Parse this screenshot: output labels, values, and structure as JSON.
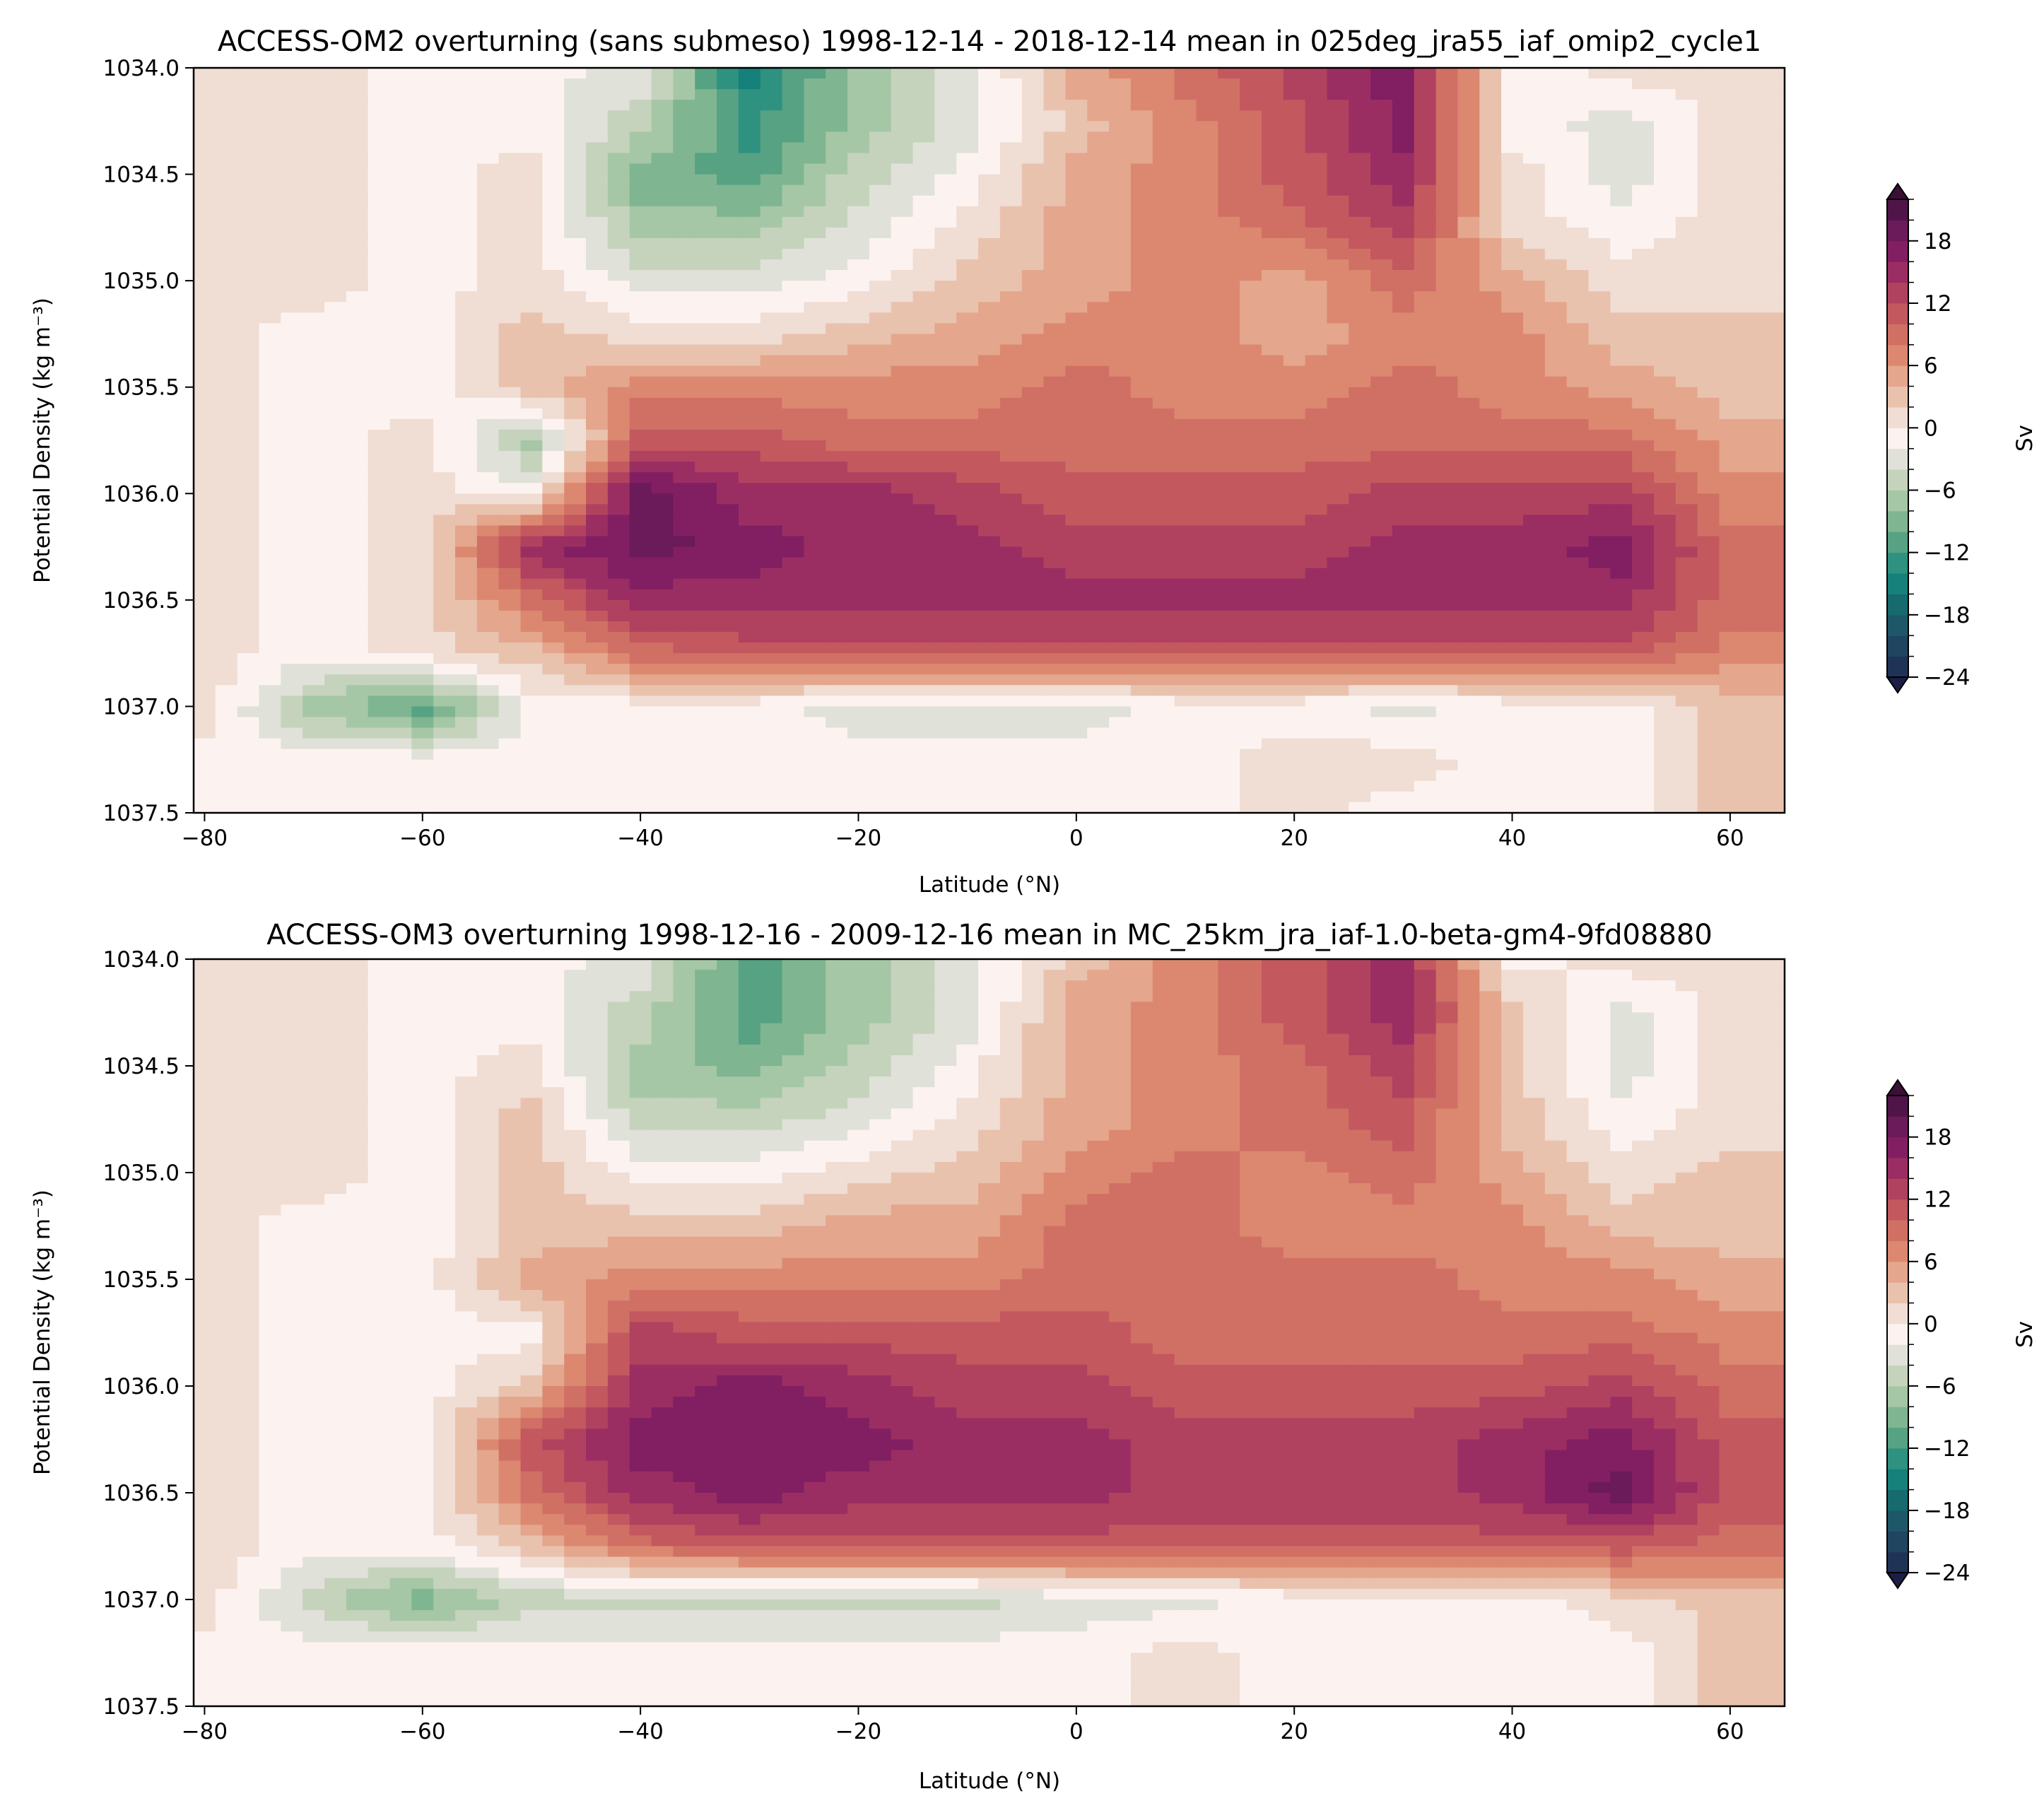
{
  "chart_data": [
    {
      "type": "heatmap",
      "subtype": "filled-contour",
      "title": "ACCESS-OM2 overturning (sans submeso) 1998-12-14 - 2018-12-14 mean in 025deg_jra55_iaf_omip2_cycle1",
      "xlabel": "Latitude ($^\\circ$N)",
      "xlabel_display": "Latitude (°N)",
      "ylabel": "Potential Density (kg m⁻³)",
      "xlim": [
        -81,
        65
      ],
      "ylim": [
        1037.5,
        1034.0
      ],
      "xticks": [
        "−80",
        "−60",
        "−40",
        "−20",
        "0",
        "20",
        "40",
        "60"
      ],
      "xtick_values": [
        -80,
        -60,
        -40,
        -20,
        0,
        20,
        40,
        60
      ],
      "yticks": [
        "1034.0",
        "1034.5",
        "1035.0",
        "1035.5",
        "1036.0",
        "1036.5",
        "1037.0",
        "1037.5"
      ],
      "colorbar": {
        "label": "Sv",
        "ticks": [
          "18",
          "12",
          "6",
          "0",
          "−6",
          "−12",
          "−18",
          "−24"
        ],
        "tick_values": [
          18,
          12,
          6,
          0,
          -6,
          -12,
          -18,
          -24
        ],
        "levels_min": -24,
        "levels_max": 22,
        "level_step": 2,
        "extend": "both"
      },
      "grid_lat": [
        -80,
        -70,
        -60,
        -50,
        -40,
        -30,
        -20,
        -10,
        0,
        10,
        20,
        30,
        40,
        50,
        60
      ],
      "grid_density": [
        1034.0,
        1034.25,
        1034.5,
        1034.75,
        1035.0,
        1035.25,
        1035.5,
        1035.75,
        1036.0,
        1036.25,
        1036.5,
        1036.75,
        1037.0,
        1037.25,
        1037.5
      ],
      "values": [
        [
          1,
          1,
          -1,
          -1,
          -3,
          -15,
          -7,
          -3,
          5,
          9,
          13,
          17,
          -1,
          1,
          1
        ],
        [
          1,
          1,
          -1,
          -1,
          -5,
          -13,
          -7,
          -3,
          3,
          7,
          11,
          17,
          -1,
          -3,
          1
        ],
        [
          1,
          1,
          -1,
          1,
          -9,
          -11,
          -5,
          -1,
          5,
          7,
          11,
          15,
          1,
          -3,
          1
        ],
        [
          1,
          1,
          -1,
          1,
          -7,
          -7,
          -3,
          1,
          5,
          7,
          9,
          13,
          1,
          -1,
          1
        ],
        [
          1,
          1,
          -1,
          1,
          -3,
          -3,
          -1,
          3,
          5,
          7,
          5,
          9,
          5,
          1,
          1
        ],
        [
          1,
          -1,
          -1,
          3,
          1,
          1,
          3,
          5,
          7,
          7,
          5,
          7,
          7,
          3,
          3
        ],
        [
          1,
          -1,
          -1,
          3,
          7,
          7,
          7,
          7,
          9,
          7,
          7,
          9,
          7,
          5,
          3
        ],
        [
          1,
          -1,
          1,
          -7,
          11,
          11,
          9,
          9,
          9,
          9,
          9,
          9,
          9,
          9,
          5
        ],
        [
          1,
          -1,
          1,
          -1,
          19,
          15,
          15,
          13,
          11,
          11,
          11,
          13,
          13,
          13,
          7
        ],
        [
          1,
          -1,
          1,
          15,
          19,
          17,
          15,
          15,
          13,
          13,
          13,
          15,
          15,
          17,
          9
        ],
        [
          1,
          -1,
          1,
          9,
          15,
          15,
          15,
          15,
          15,
          15,
          15,
          15,
          15,
          15,
          9
        ],
        [
          1,
          -1,
          1,
          3,
          9,
          11,
          11,
          11,
          11,
          11,
          11,
          11,
          11,
          11,
          7
        ],
        [
          1,
          -7,
          -11,
          -1,
          -1,
          -1,
          -3,
          -3,
          -3,
          -1,
          -1,
          -3,
          -1,
          -1,
          3
        ],
        [
          -1,
          -1,
          -1,
          -1,
          -1,
          -1,
          -1,
          -1,
          -1,
          -1,
          1,
          1,
          -1,
          -1,
          3
        ],
        [
          -1,
          -1,
          -1,
          -1,
          -1,
          -1,
          -1,
          -1,
          -1,
          -1,
          1,
          -1,
          -1,
          -1,
          3
        ]
      ]
    },
    {
      "type": "heatmap",
      "subtype": "filled-contour",
      "title": "ACCESS-OM3 overturning 1998-12-16 - 2009-12-16 mean in MC_25km_jra_iaf-1.0-beta-gm4-9fd08880",
      "xlabel": "Latitude ($^\\circ$N)",
      "xlabel_display": "Latitude (°N)",
      "ylabel": "Potential Density (kg m⁻³)",
      "xlim": [
        -81,
        65
      ],
      "ylim": [
        1037.5,
        1034.0
      ],
      "xticks": [
        "−80",
        "−60",
        "−40",
        "−20",
        "0",
        "20",
        "40",
        "60"
      ],
      "xtick_values": [
        -80,
        -60,
        -40,
        -20,
        0,
        20,
        40,
        60
      ],
      "yticks": [
        "1034.0",
        "1034.5",
        "1035.0",
        "1035.5",
        "1036.0",
        "1036.5",
        "1037.0",
        "1037.5"
      ],
      "colorbar": {
        "label": "Sv",
        "ticks": [
          "18",
          "12",
          "6",
          "0",
          "−6",
          "−12",
          "−18",
          "−24"
        ],
        "tick_values": [
          18,
          12,
          6,
          0,
          -6,
          -12,
          -18,
          -24
        ],
        "levels_min": -24,
        "levels_max": 22,
        "level_step": 2,
        "extend": "both"
      },
      "grid_lat": [
        -80,
        -70,
        -60,
        -50,
        -40,
        -30,
        -20,
        -10,
        0,
        10,
        20,
        30,
        40,
        50,
        60
      ],
      "grid_density": [
        1034.0,
        1034.25,
        1034.5,
        1034.75,
        1035.0,
        1035.25,
        1035.5,
        1035.75,
        1036.0,
        1036.25,
        1036.5,
        1036.75,
        1037.0,
        1037.25,
        1037.5
      ],
      "values": [
        [
          1,
          1,
          -1,
          -1,
          -3,
          -11,
          -7,
          -3,
          3,
          7,
          11,
          15,
          -1,
          1,
          1
        ],
        [
          1,
          1,
          -1,
          -1,
          -5,
          -11,
          -7,
          -3,
          5,
          7,
          11,
          15,
          3,
          -3,
          1
        ],
        [
          1,
          1,
          -1,
          1,
          -7,
          -9,
          -5,
          -1,
          5,
          7,
          9,
          13,
          3,
          -3,
          1
        ],
        [
          1,
          1,
          -1,
          3,
          -5,
          -5,
          -3,
          1,
          5,
          7,
          9,
          11,
          3,
          -1,
          1
        ],
        [
          1,
          1,
          -1,
          3,
          -1,
          -1,
          1,
          3,
          7,
          9,
          7,
          9,
          5,
          1,
          3
        ],
        [
          1,
          -1,
          -1,
          3,
          3,
          3,
          5,
          5,
          9,
          9,
          7,
          7,
          7,
          3,
          3
        ],
        [
          1,
          -1,
          -1,
          5,
          7,
          7,
          7,
          7,
          9,
          9,
          9,
          9,
          7,
          7,
          5
        ],
        [
          1,
          -1,
          -1,
          -1,
          13,
          11,
          11,
          11,
          11,
          9,
          9,
          9,
          9,
          9,
          7
        ],
        [
          1,
          -1,
          -1,
          3,
          15,
          17,
          15,
          13,
          13,
          11,
          11,
          11,
          11,
          13,
          9
        ],
        [
          1,
          -1,
          -1,
          11,
          17,
          17,
          17,
          15,
          15,
          13,
          13,
          13,
          15,
          17,
          11
        ],
        [
          1,
          -1,
          -1,
          9,
          15,
          17,
          15,
          15,
          15,
          13,
          13,
          13,
          15,
          19,
          11
        ],
        [
          1,
          -1,
          -1,
          3,
          9,
          11,
          11,
          11,
          11,
          11,
          11,
          11,
          11,
          11,
          9
        ],
        [
          1,
          -5,
          -9,
          -5,
          -5,
          -5,
          -5,
          -5,
          -3,
          -3,
          -1,
          -1,
          -1,
          1,
          3
        ],
        [
          -1,
          -1,
          -1,
          -1,
          -1,
          -1,
          -1,
          -1,
          -1,
          1,
          -1,
          -1,
          -1,
          -1,
          3
        ],
        [
          -1,
          -1,
          -1,
          -1,
          -1,
          -1,
          -1,
          -1,
          -1,
          1,
          -1,
          -1,
          -1,
          -1,
          3
        ]
      ]
    }
  ],
  "colors": {
    "colormap_low_to_high": [
      "#1b1d45",
      "#1e3356",
      "#1f4560",
      "#1e5868",
      "#176a6e",
      "#16817a",
      "#2f917f",
      "#56a283",
      "#7fb590",
      "#a5c7a6",
      "#c5d3bc",
      "#e0e1d8",
      "#fcf3f1",
      "#f0ddd3",
      "#e9c2ae",
      "#e4a68c",
      "#dc8870",
      "#d07065",
      "#c3585f",
      "#b04260",
      "#9a2e62",
      "#821f62",
      "#6b1a5a",
      "#4f1549",
      "#3a1035"
    ]
  }
}
